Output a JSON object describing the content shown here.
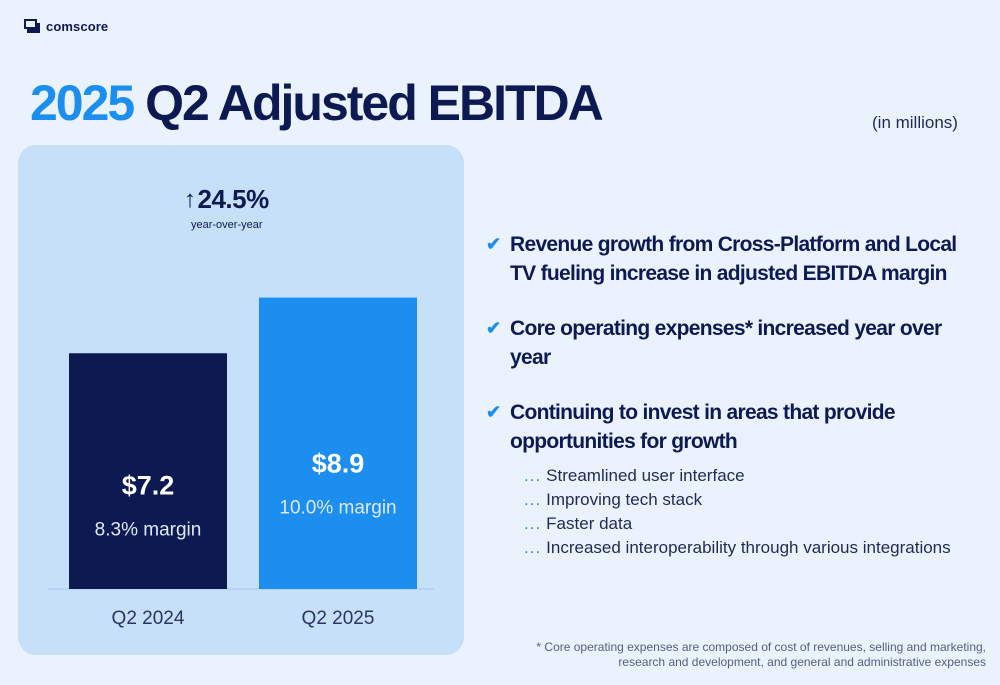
{
  "brand": {
    "name": "comscore",
    "logo_icon": "comscore-logo-icon"
  },
  "colors": {
    "dark_navy": "#0d1a52",
    "bright_blue": "#1b8ef0",
    "panel_bg": "#c7e0fa",
    "page_bg": "#e9f2fd"
  },
  "title": {
    "year": "2025",
    "rest": "Q2 Adjusted EBITDA"
  },
  "units_note": "(in millions)",
  "growth": {
    "value": "24.5%",
    "label": "year-over-year",
    "icon": "up-arrow-icon"
  },
  "chart_data": {
    "type": "bar",
    "categories": [
      "Q2 2024",
      "Q2 2025"
    ],
    "values": [
      7.2,
      8.9
    ],
    "value_labels": [
      "$7.2",
      "$8.9"
    ],
    "margin_labels": [
      "8.3% margin",
      "10.0% margin"
    ],
    "colors": [
      "#0d1a52",
      "#1b8ef0"
    ],
    "ylim": [
      0,
      11.3
    ]
  },
  "bullets": [
    {
      "text": "Revenue growth from Cross-Platform and Local TV fueling increase in adjusted EBITDA margin"
    },
    {
      "text": "Core operating expenses* increased year over year"
    },
    {
      "text": "Continuing to invest in areas that provide opportunities for growth"
    }
  ],
  "subitems": {
    "marker": "...",
    "items": [
      "Streamlined user interface",
      "Improving tech stack",
      "Faster data",
      "Increased interoperability through various integrations"
    ]
  },
  "footnote": {
    "line1": "* Core operating expenses are composed of cost of revenues, selling and marketing,",
    "line2": "research and development, and general and administrative expenses"
  }
}
